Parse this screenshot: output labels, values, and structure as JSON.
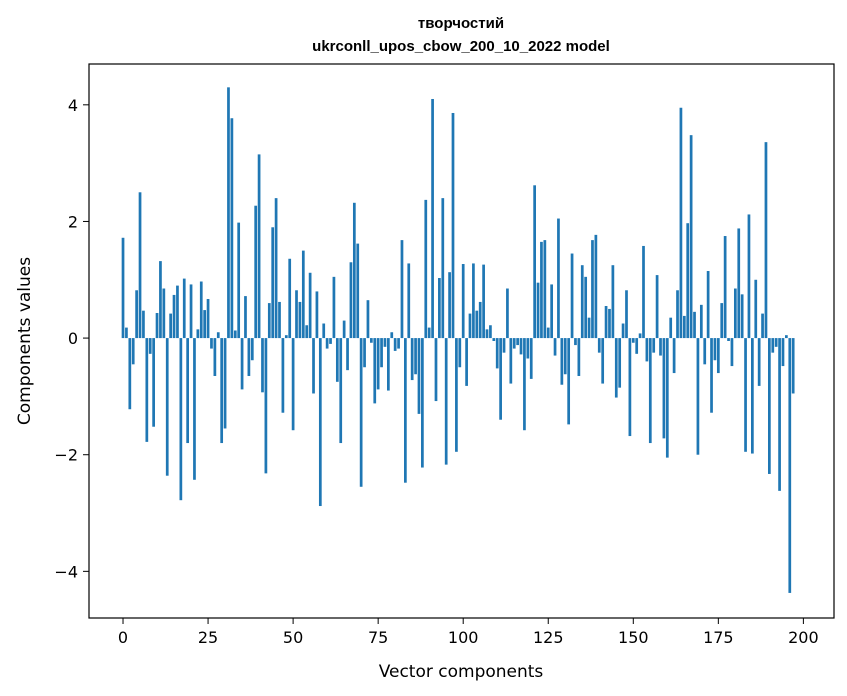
{
  "chart_data": {
    "type": "bar",
    "title_line1": "творчостий",
    "title_line2": "ukrconll_upos_cbow_200_10_2022 model",
    "xlabel": "Vector components",
    "ylabel": "Components values",
    "xlim": [
      -10,
      209
    ],
    "ylim": [
      -4.8,
      4.7
    ],
    "xticks": [
      0,
      25,
      50,
      75,
      100,
      125,
      150,
      175,
      200
    ],
    "yticks": [
      -4,
      -2,
      0,
      2,
      4
    ],
    "ytick_labels": [
      "−4",
      "−2",
      "0",
      "2",
      "4"
    ],
    "bar_color": "#1f77b4",
    "grid": false,
    "values": [
      1.72,
      0.18,
      -1.22,
      -0.45,
      0.82,
      2.5,
      0.47,
      -1.78,
      -0.27,
      -1.52,
      0.43,
      1.32,
      0.85,
      -2.36,
      0.42,
      0.74,
      0.9,
      -2.78,
      1.02,
      -1.8,
      0.92,
      -2.43,
      0.15,
      0.97,
      0.48,
      0.67,
      -0.18,
      -0.65,
      0.1,
      -1.8,
      -1.55,
      4.3,
      3.77,
      0.13,
      1.98,
      -0.88,
      0.72,
      -0.65,
      -0.38,
      2.27,
      3.15,
      -0.93,
      -2.32,
      0.6,
      1.9,
      2.4,
      0.62,
      -1.28,
      0.05,
      1.36,
      -1.58,
      0.82,
      0.62,
      1.5,
      0.22,
      1.12,
      -0.95,
      0.8,
      -2.88,
      0.25,
      -0.18,
      -0.1,
      1.05,
      -0.75,
      -1.8,
      0.3,
      -0.55,
      1.3,
      2.32,
      1.62,
      -2.55,
      -0.5,
      0.65,
      -0.08,
      -1.12,
      -0.88,
      -0.5,
      -0.15,
      -0.9,
      0.1,
      -0.22,
      -0.18,
      1.68,
      -2.48,
      1.28,
      -0.72,
      -0.62,
      -1.3,
      -2.22,
      2.37,
      0.18,
      4.1,
      -1.08,
      1.03,
      2.4,
      -2.17,
      1.13,
      3.86,
      -1.95,
      -0.5,
      1.27,
      -0.82,
      0.42,
      1.28,
      0.47,
      0.62,
      1.26,
      0.15,
      0.22,
      -0.05,
      -0.52,
      -1.4,
      -0.25,
      0.85,
      -0.78,
      -0.18,
      -0.12,
      -0.28,
      -1.58,
      -0.35,
      -0.7,
      2.62,
      0.95,
      1.65,
      1.68,
      0.18,
      0.92,
      -0.3,
      2.05,
      -0.8,
      -0.62,
      -1.48,
      1.45,
      -0.12,
      -0.65,
      1.25,
      1.05,
      0.35,
      1.68,
      1.77,
      -0.25,
      -0.78,
      0.55,
      0.5,
      1.25,
      -1.02,
      -0.85,
      0.25,
      0.82,
      -1.68,
      -0.08,
      -0.27,
      0.08,
      1.58,
      -0.4,
      -1.8,
      -0.25,
      1.08,
      -0.3,
      -1.72,
      -2.05,
      0.35,
      -0.6,
      0.82,
      3.95,
      0.38,
      1.97,
      3.48,
      0.45,
      -2.0,
      0.57,
      -0.45,
      1.15,
      -1.28,
      -0.38,
      -0.6,
      0.6,
      1.75,
      -0.05,
      -0.48,
      0.85,
      1.88,
      0.75,
      -1.95,
      2.12,
      -1.98,
      1.0,
      -0.82,
      0.42,
      3.36,
      -2.33,
      -0.25,
      -0.15,
      -2.62,
      -0.48,
      0.05,
      -4.37,
      -0.95
    ]
  }
}
